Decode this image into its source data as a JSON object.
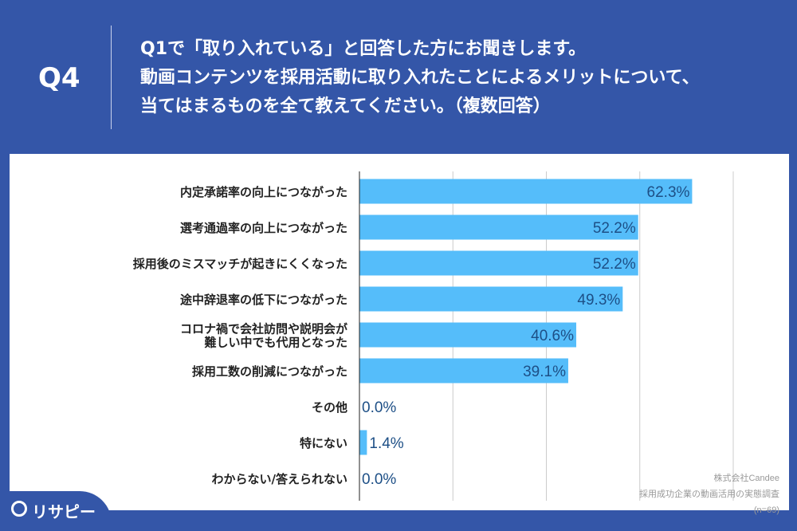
{
  "header": {
    "qnum": "Q4",
    "lines": [
      "Q1で「取り入れている」と回答した方にお聞きします。",
      "動画コンテンツを採用活動に取り入れたことによるメリットについて、",
      "当てはまるものを全て教えてください。（複数回答）"
    ]
  },
  "source": {
    "company": "株式会社Candee",
    "survey": "採用成功企業の動画活用の実態調査",
    "n": "(n=69)"
  },
  "logo": {
    "text": "リサピー"
  },
  "colors": {
    "background": "#3456a8",
    "bar": "#55bdfa",
    "value_label": "#1d4f86"
  },
  "chart_data": {
    "type": "bar",
    "orientation": "horizontal",
    "categories": [
      [
        "内定承諾率の向上につながった"
      ],
      [
        "選考通過率の向上につながった"
      ],
      [
        "採用後のミスマッチが起きにくくなった"
      ],
      [
        "途中辞退率の低下につながった"
      ],
      [
        "コロナ禍で会社訪問や説明会が",
        "難しい中でも代用となった"
      ],
      [
        "採用工数の削減につながった"
      ],
      [
        "その他"
      ],
      [
        "特にない"
      ],
      [
        "わからない/答えられない"
      ]
    ],
    "values": [
      62.3,
      52.2,
      52.2,
      49.3,
      40.6,
      39.1,
      0.0,
      1.4,
      0.0
    ],
    "labels": [
      "62.3%",
      "52.2%",
      "52.2%",
      "49.3%",
      "40.6%",
      "39.1%",
      "0.0%",
      "1.4%",
      "0.0%"
    ],
    "xlim": [
      0,
      70
    ],
    "grid": true
  }
}
